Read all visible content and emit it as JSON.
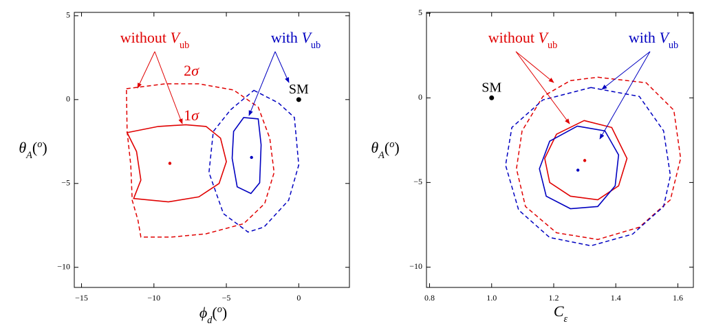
{
  "chart_data": [
    {
      "type": "contour",
      "xlim": [
        -15.5,
        3.5
      ],
      "ylim": [
        -11.2,
        5.2
      ],
      "xticks": [
        {
          "value": -15,
          "label": "−15"
        },
        {
          "value": -10,
          "label": "−10"
        },
        {
          "value": -5,
          "label": "−5"
        },
        0
      ],
      "yticks": [
        5,
        0,
        {
          "value": -5,
          "label": "−5"
        },
        {
          "value": -10,
          "label": "−10"
        }
      ],
      "xlabel": [
        {
          "t": "ϕ",
          "style": "i"
        },
        {
          "t": "d",
          "style": "sub-i"
        },
        {
          "t": "("
        },
        {
          "t": "o",
          "style": "sup-i"
        },
        {
          "t": ")"
        }
      ],
      "ylabel": [
        {
          "t": "θ",
          "style": "i"
        },
        {
          "t": "A",
          "style": "sub-i"
        },
        {
          "t": "("
        },
        {
          "t": "o",
          "style": "sup-i"
        },
        {
          "t": ")"
        }
      ],
      "series": [
        {
          "color": "#e00000",
          "dash": true,
          "x": [
            -11.9,
            -9.2,
            -6.9,
            -4.5,
            -2.8,
            -2.0,
            -1.7,
            -2.35,
            -3.8,
            -6.4,
            -8.8,
            -10.9,
            -11.1,
            -11.5,
            -11.6,
            -11.85
          ],
          "y": [
            0.65,
            0.94,
            0.94,
            0.57,
            -0.45,
            -2.3,
            -4.35,
            -6.2,
            -7.4,
            -8.0,
            -8.2,
            -8.2,
            -7.2,
            -6.0,
            -3.9,
            -1.9
          ]
        },
        {
          "color": "#e00000",
          "dash": false,
          "x": [
            -11.85,
            -9.7,
            -7.8,
            -6.4,
            -5.4,
            -5.0,
            -5.5,
            -6.9,
            -9.0,
            -11.4,
            -10.9,
            -11.2
          ],
          "y": [
            -1.97,
            -1.6,
            -1.5,
            -1.6,
            -2.3,
            -3.7,
            -5.0,
            -5.8,
            -6.1,
            -5.9,
            -4.8,
            -3.1
          ]
        },
        {
          "color": "#0000c0",
          "dash": true,
          "x": [
            -3.1,
            -1.4,
            -0.3,
            0.0,
            -0.7,
            -2.4,
            -3.5,
            -5.2,
            -6.2,
            -5.9,
            -4.7
          ],
          "y": [
            0.55,
            -0.2,
            -1.07,
            -3.9,
            -6.0,
            -7.6,
            -7.9,
            -6.8,
            -4.35,
            -1.9,
            -0.6
          ]
        },
        {
          "color": "#0000c0",
          "dash": false,
          "x": [
            -3.8,
            -2.8,
            -2.6,
            -2.7,
            -3.3,
            -4.25,
            -4.6,
            -4.5
          ],
          "y": [
            -1.07,
            -1.15,
            -2.7,
            -4.96,
            -5.6,
            -5.2,
            -3.5,
            -1.9
          ]
        }
      ],
      "points": [
        {
          "x": -8.9,
          "y": -3.8,
          "color": "#e00000"
        },
        {
          "x": -3.26,
          "y": -3.45,
          "color": "#0000c0"
        },
        {
          "x": 0,
          "y": 0,
          "color": "#000000",
          "label": "SM"
        }
      ],
      "annotations": [
        {
          "color": "#e00000",
          "parts": [
            {
              "t": "without"
            },
            {
              "t": "V",
              "style": "i"
            },
            {
              "t": "ub",
              "style": "sub"
            }
          ]
        },
        {
          "color": "#0000c0",
          "parts": [
            {
              "t": "with"
            },
            {
              "t": "V",
              "style": "i"
            },
            {
              "t": "ub",
              "style": "sub"
            }
          ]
        },
        {
          "color": "#e00000",
          "parts": [
            {
              "t": "2"
            },
            {
              "t": "σ",
              "style": "i"
            }
          ]
        },
        {
          "color": "#e00000",
          "parts": [
            {
              "t": "1"
            },
            {
              "t": "σ",
              "style": "i"
            }
          ]
        }
      ]
    },
    {
      "type": "contour",
      "xlim": [
        0.79,
        1.65
      ],
      "ylim": [
        -11.2,
        5.05
      ],
      "xticks": [
        0.8,
        {
          "value": 1,
          "label": "1.0"
        },
        1.2,
        1.4,
        1.6
      ],
      "yticks": [
        5,
        0,
        {
          "value": -5,
          "label": "−5"
        },
        {
          "value": -10,
          "label": "−10"
        }
      ],
      "xlabel": [
        {
          "t": "C",
          "style": "i"
        },
        {
          "t": "ε",
          "style": "sub-i"
        }
      ],
      "ylabel": [
        {
          "t": "θ",
          "style": "i"
        },
        {
          "t": "A",
          "style": "sub-i"
        },
        {
          "t": "("
        },
        {
          "t": "o",
          "style": "sup-i"
        },
        {
          "t": ")"
        }
      ],
      "series": [
        {
          "color": "#e00000",
          "dash": true,
          "x": [
            1.342,
            1.498,
            1.587,
            1.609,
            1.576,
            1.476,
            1.342,
            1.209,
            1.109,
            1.08,
            1.098,
            1.165,
            1.254
          ],
          "y": [
            1.22,
            0.89,
            -0.73,
            -3.58,
            -6.02,
            -7.64,
            -8.37,
            -7.97,
            -6.42,
            -4.19,
            -1.95,
            0.08,
            1.02
          ]
        },
        {
          "color": "#0000c0",
          "dash": true,
          "x": [
            1.32,
            1.476,
            1.554,
            1.576,
            1.554,
            1.454,
            1.32,
            1.187,
            1.087,
            1.045,
            1.065,
            1.165
          ],
          "y": [
            0.61,
            0.08,
            -1.95,
            -4.6,
            -6.42,
            -8.05,
            -8.74,
            -8.25,
            -6.63,
            -3.98,
            -1.75,
            -0.12
          ]
        },
        {
          "color": "#e00000",
          "dash": false,
          "x": [
            1.298,
            1.387,
            1.436,
            1.409,
            1.342,
            1.254,
            1.187,
            1.171,
            1.209
          ],
          "y": [
            -1.34,
            -1.75,
            -3.58,
            -5.2,
            -6.02,
            -5.81,
            -5.0,
            -3.58,
            -2.15
          ]
        },
        {
          "color": "#0000c0",
          "dash": false,
          "x": [
            1.276,
            1.365,
            1.409,
            1.398,
            1.342,
            1.254,
            1.176,
            1.154,
            1.187
          ],
          "y": [
            -1.67,
            -1.95,
            -3.37,
            -5.2,
            -6.42,
            -6.55,
            -5.81,
            -4.19,
            -2.56
          ]
        }
      ],
      "points": [
        {
          "x": 1.3,
          "y": -3.7,
          "color": "#e00000"
        },
        {
          "x": 1.278,
          "y": -4.27,
          "color": "#0000c0"
        },
        {
          "x": 1.0,
          "y": 0,
          "color": "#000000",
          "label": "SM"
        }
      ],
      "annotations": [
        {
          "color": "#e00000",
          "parts": [
            {
              "t": "without"
            },
            {
              "t": "V",
              "style": "i"
            },
            {
              "t": "ub",
              "style": "sub"
            }
          ]
        },
        {
          "color": "#0000c0",
          "parts": [
            {
              "t": "with"
            },
            {
              "t": "V",
              "style": "i"
            },
            {
              "t": "ub",
              "style": "sub"
            }
          ]
        }
      ]
    }
  ]
}
